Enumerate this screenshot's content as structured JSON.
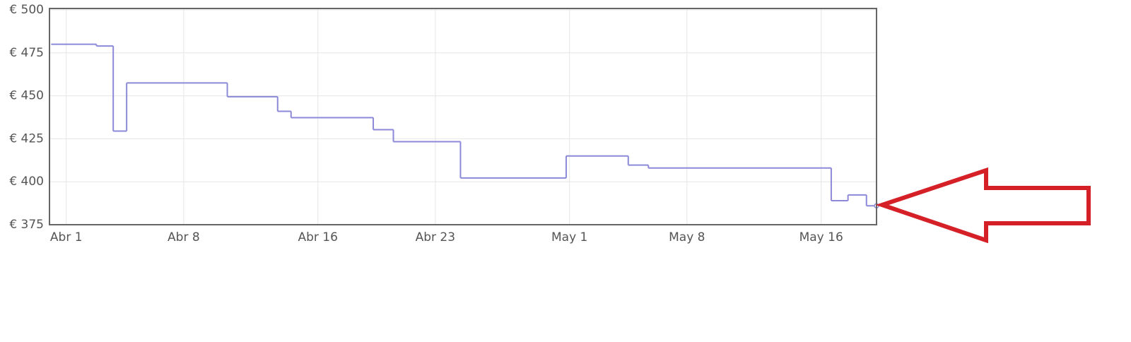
{
  "chart_data": {
    "type": "step-line",
    "x": [
      0.1,
      2.8,
      3.8,
      4.6,
      10.6,
      13.6,
      14.4,
      19.3,
      20.5,
      24.5,
      30.8,
      34.5,
      35.7,
      46.6,
      47.6,
      48.7
    ],
    "series": [
      {
        "color": "#8c8ad8",
        "values": [
          480,
          479,
          429.5,
          457.5,
          449.5,
          441,
          437.3,
          430.3,
          423.3,
          402.2,
          415,
          409.7,
          408,
          389,
          392.3,
          386
        ]
      }
    ],
    "xlim": [
      0,
      49.3
    ],
    "xticks": [
      {
        "value": 1,
        "label": "Abr 1"
      },
      {
        "value": 8,
        "label": "Abr 8"
      },
      {
        "value": 16,
        "label": "Abr 16"
      },
      {
        "value": 23,
        "label": "Abr 23"
      },
      {
        "value": 31,
        "label": "May 1"
      },
      {
        "value": 38,
        "label": "May 8"
      },
      {
        "value": 46,
        "label": "May 16"
      }
    ],
    "ylim": [
      375,
      500
    ],
    "yticks": [
      {
        "value": 375,
        "label": "€ 375"
      },
      {
        "value": 400,
        "label": "€ 400"
      },
      {
        "value": 425,
        "label": "€ 425"
      },
      {
        "value": 450,
        "label": "€ 450"
      },
      {
        "value": 475,
        "label": "€ 475"
      },
      {
        "value": 500,
        "label": "€ 500"
      }
    ],
    "grid": true
  }
}
